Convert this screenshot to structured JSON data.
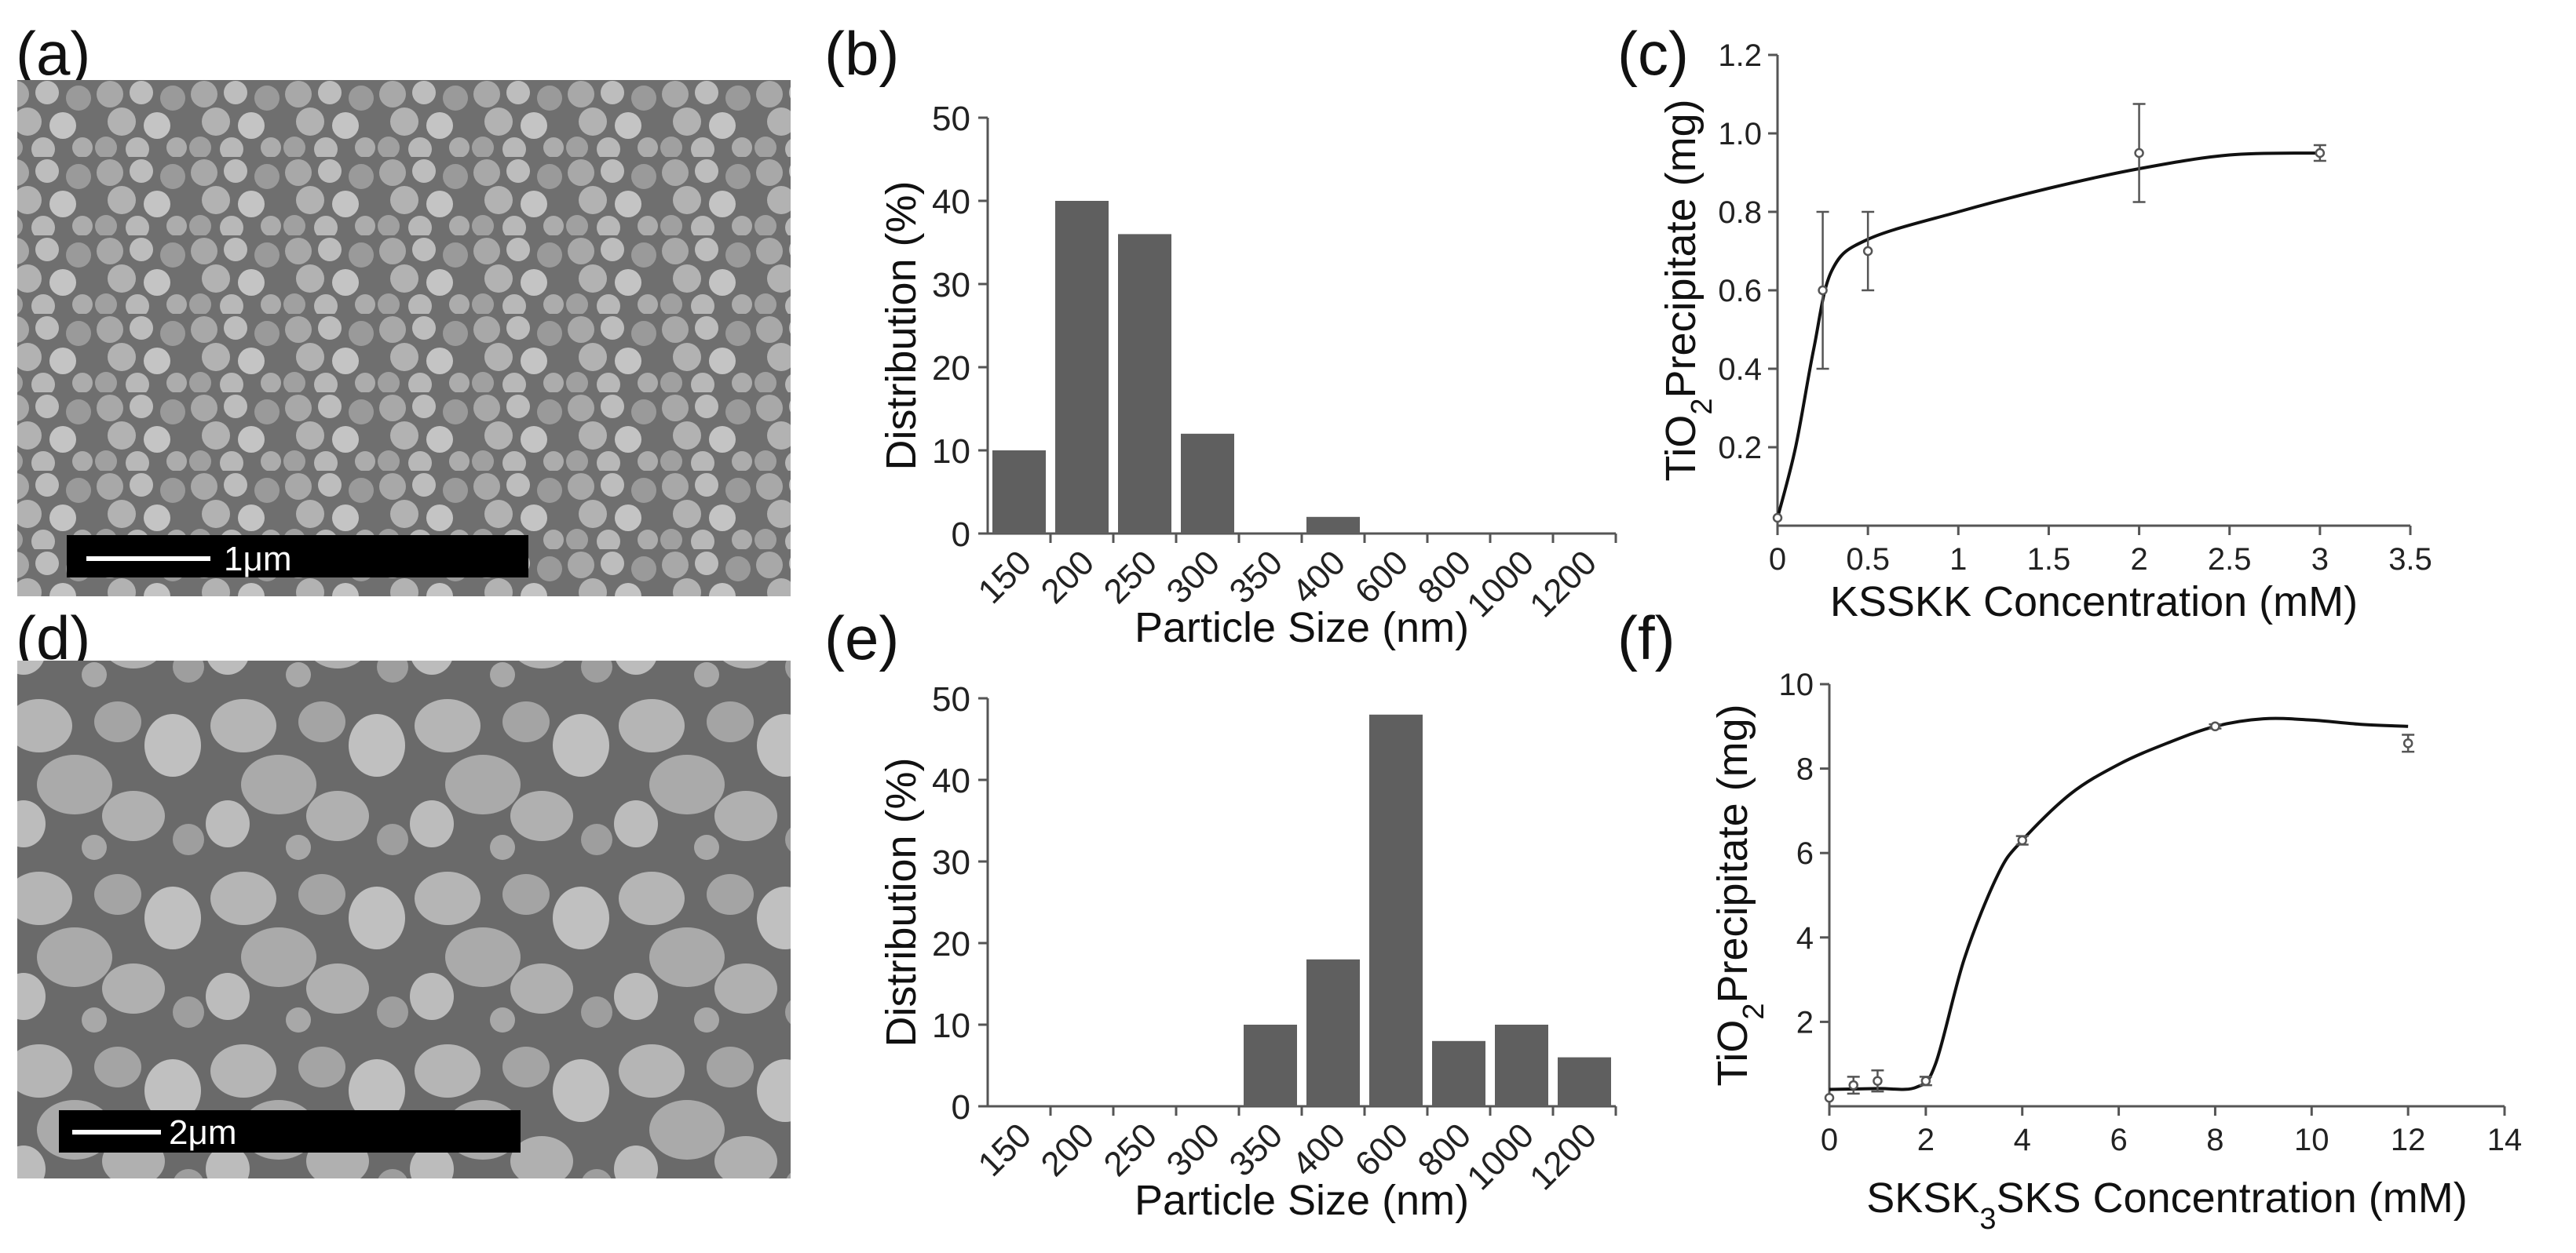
{
  "panels": {
    "a": {
      "label": "(a)",
      "scale_bar": "1μm"
    },
    "b": {
      "label": "(b)"
    },
    "c": {
      "label": "(c)"
    },
    "d": {
      "label": "(d)",
      "scale_bar": "2μm"
    },
    "e": {
      "label": "(e)"
    },
    "f": {
      "label": "(f)"
    }
  },
  "colors": {
    "bar": "#5f5f5f",
    "line": "#111111",
    "micrograph": "#8a8a8a"
  },
  "chart_data": [
    {
      "id": "b",
      "type": "bar",
      "categories": [
        "150",
        "200",
        "250",
        "300",
        "350",
        "400",
        "600",
        "800",
        "1000",
        "1200"
      ],
      "values": [
        10,
        40,
        36,
        12,
        0,
        2,
        0,
        0,
        0,
        0
      ],
      "xlabel": "Particle Size (nm)",
      "ylabel": "Distribution (%)",
      "ylim": [
        0,
        50
      ],
      "yticks": [
        "0",
        "10",
        "20",
        "30",
        "40",
        "50"
      ]
    },
    {
      "id": "e",
      "type": "bar",
      "categories": [
        "150",
        "200",
        "250",
        "300",
        "350",
        "400",
        "600",
        "800",
        "1000",
        "1200"
      ],
      "values": [
        0,
        0,
        0,
        0,
        10,
        18,
        48,
        8,
        10,
        6
      ],
      "xlabel": "Particle Size (nm)",
      "ylabel": "Distribution (%)",
      "ylim": [
        0,
        50
      ],
      "yticks": [
        "0",
        "10",
        "20",
        "30",
        "40",
        "50"
      ]
    },
    {
      "id": "c",
      "type": "scatter",
      "xlabel": "KSSKK Concentration (mM)",
      "ylabel": {
        "pre": "TiO",
        "sub": "2",
        "post": "Precipitate (mg)"
      },
      "xlim": [
        0,
        3.5
      ],
      "ylim": [
        0,
        1.2
      ],
      "xticks": [
        "0",
        "0.5",
        "1",
        "1.5",
        "2",
        "2.5",
        "3",
        "3.5"
      ],
      "yticks": [
        "0.2",
        "0.4",
        "0.6",
        "0.8",
        "1.0",
        "1.2"
      ],
      "points": [
        {
          "x": 0,
          "y": 0.02,
          "err": 0.0
        },
        {
          "x": 0.25,
          "y": 0.6,
          "err": 0.2
        },
        {
          "x": 0.5,
          "y": 0.7,
          "err": 0.1
        },
        {
          "x": 2.0,
          "y": 0.95,
          "err": 0.125
        },
        {
          "x": 3.0,
          "y": 0.95,
          "err": 0.02
        }
      ],
      "curve": [
        [
          0,
          0.02
        ],
        [
          0.1,
          0.2
        ],
        [
          0.2,
          0.45
        ],
        [
          0.3,
          0.65
        ],
        [
          0.5,
          0.73
        ],
        [
          1.0,
          0.8
        ],
        [
          1.5,
          0.86
        ],
        [
          2.0,
          0.91
        ],
        [
          2.5,
          0.945
        ],
        [
          3.0,
          0.95
        ]
      ]
    },
    {
      "id": "f",
      "type": "scatter",
      "xlabel": {
        "pre": "SKSK",
        "sub": "3",
        "post": "SKS Concentration (mM)"
      },
      "ylabel": {
        "pre": "TiO",
        "sub": "2",
        "post": "Precipitate (mg)"
      },
      "xlim": [
        0,
        14
      ],
      "ylim": [
        0,
        10
      ],
      "xticks": [
        "0",
        "2",
        "4",
        "6",
        "8",
        "10",
        "12",
        "14"
      ],
      "yticks": [
        "2",
        "4",
        "6",
        "8",
        "10"
      ],
      "points": [
        {
          "x": 0,
          "y": 0.2,
          "err": 0.0
        },
        {
          "x": 0.5,
          "y": 0.5,
          "err": 0.2
        },
        {
          "x": 1.0,
          "y": 0.6,
          "err": 0.25
        },
        {
          "x": 2.0,
          "y": 0.6,
          "err": 0.1
        },
        {
          "x": 4.0,
          "y": 6.3,
          "err": 0.1
        },
        {
          "x": 8.0,
          "y": 9.0,
          "err": 0.05
        },
        {
          "x": 12.0,
          "y": 8.6,
          "err": 0.2
        }
      ],
      "curve": [
        [
          0,
          0.4
        ],
        [
          1.0,
          0.42
        ],
        [
          1.8,
          0.45
        ],
        [
          2.2,
          1.0
        ],
        [
          2.8,
          3.5
        ],
        [
          3.5,
          5.5
        ],
        [
          4.0,
          6.3
        ],
        [
          5.0,
          7.4
        ],
        [
          6.0,
          8.1
        ],
        [
          7.0,
          8.6
        ],
        [
          8.0,
          9.0
        ],
        [
          9.0,
          9.18
        ],
        [
          10.0,
          9.15
        ],
        [
          11.0,
          9.05
        ],
        [
          12.0,
          9.0
        ]
      ]
    }
  ]
}
